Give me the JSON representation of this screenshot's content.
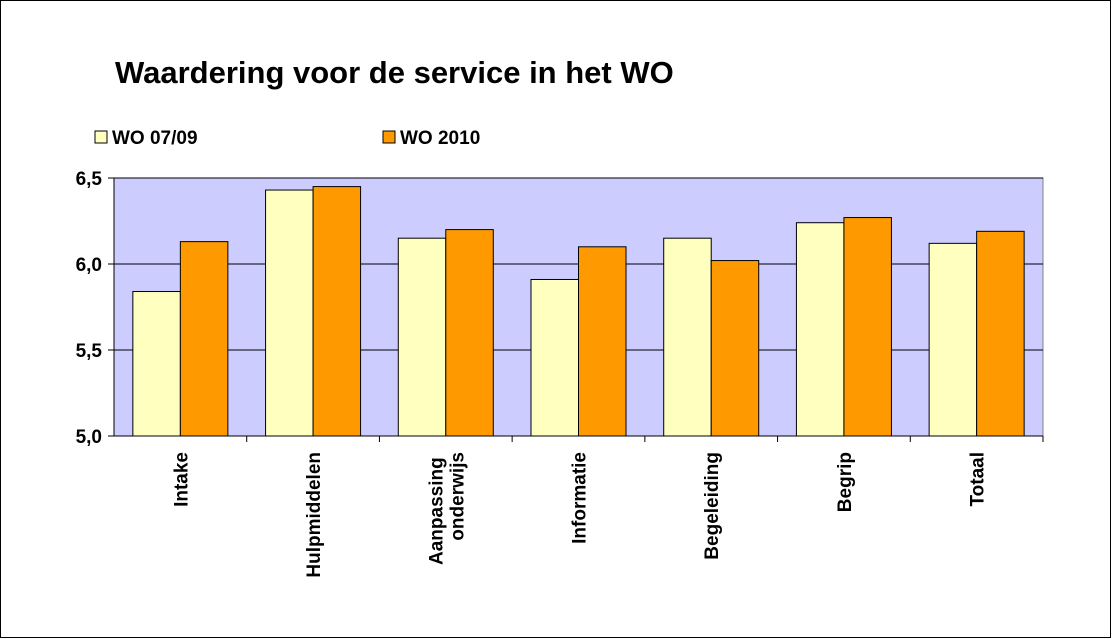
{
  "chart_data": {
    "type": "bar",
    "title": "Waardering voor de service in het WO",
    "categories": [
      "Intake",
      "Hulpmiddelen",
      "Aanpassing onderwijs",
      "Informatie",
      "Begeleiding",
      "Begrip",
      "Totaal"
    ],
    "series": [
      {
        "name": "WO 07/09",
        "color": "#ffffc0",
        "values": [
          5.84,
          6.43,
          6.15,
          5.91,
          6.15,
          6.24,
          6.12
        ]
      },
      {
        "name": "WO 2010",
        "color": "#ff9900",
        "values": [
          6.13,
          6.45,
          6.2,
          6.1,
          6.02,
          6.27,
          6.19
        ]
      }
    ],
    "ylim": [
      5.0,
      6.5
    ],
    "yticks": [
      {
        "value": 5.0,
        "label": "5,0"
      },
      {
        "value": 5.5,
        "label": "5,5"
      },
      {
        "value": 6.0,
        "label": "6,0"
      },
      {
        "value": 6.5,
        "label": "6,5"
      }
    ],
    "grid": true,
    "legend": "top",
    "plot_background": "#ccccff"
  }
}
